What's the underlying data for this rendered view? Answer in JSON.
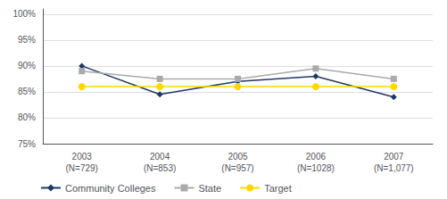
{
  "chart_data": {
    "type": "line",
    "categories": [
      "2003\n(N=729)",
      "2004\n(N=853)",
      "2005\n(N=957)",
      "2006\n(N=1028)",
      "2007\n(N=1,077)"
    ],
    "series": [
      {
        "name": "Community Colleges",
        "color": "#1F3864",
        "marker": "diamond",
        "values": [
          90,
          84.5,
          87,
          88,
          84
        ]
      },
      {
        "name": "State",
        "color": "#AAAAAA",
        "marker": "square",
        "values": [
          89,
          87.5,
          87.5,
          89.5,
          87.5
        ]
      },
      {
        "name": "Target",
        "color": "#FFD700",
        "marker": "circle",
        "values": [
          86,
          86,
          86,
          86,
          86
        ]
      }
    ],
    "ylim": [
      75,
      101
    ],
    "yticks": [
      {
        "value": 75,
        "label": "75%"
      },
      {
        "value": 80,
        "label": "80%"
      },
      {
        "value": 85,
        "label": "85%"
      },
      {
        "value": 90,
        "label": "90%"
      },
      {
        "value": 95,
        "label": "95%"
      },
      {
        "value": 100,
        "label": "100%"
      }
    ],
    "grid": true,
    "legend": "lower left"
  }
}
